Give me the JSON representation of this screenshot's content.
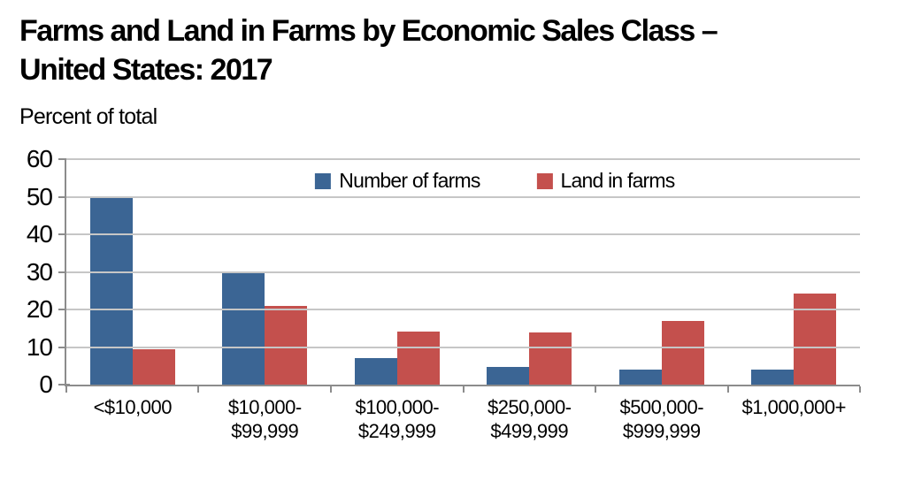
{
  "page": {
    "title_lines": [
      "Farms and Land in Farms by Economic Sales Class –",
      "United States: 2017"
    ],
    "y_unit_label": "Percent of total"
  },
  "chart_data": {
    "type": "bar",
    "title": "Farms and Land in Farms by Economic Sales Class – United States: 2017",
    "xlabel": "",
    "ylabel": "Percent of total",
    "ylim": [
      0,
      60
    ],
    "yticks": [
      0,
      10,
      20,
      30,
      40,
      50,
      60
    ],
    "grid": true,
    "legend_position": "top-center-inside",
    "categories": [
      "<$10,000",
      "$10,000-\n$99,999",
      "$100,000-\n$249,999",
      "$250,000-\n$499,999",
      "$500,000-\n$999,999",
      "$1,000,000+"
    ],
    "series": [
      {
        "name": "Number of farms",
        "color": "#3B6594",
        "values": [
          50,
          30,
          7,
          4.6,
          4,
          4
        ]
      },
      {
        "name": "Land in farms",
        "color": "#C4504D",
        "values": [
          9.5,
          21,
          14.2,
          14,
          17,
          24.3
        ]
      }
    ],
    "colors": {
      "gridline": "#C6C6C6",
      "axis": "#8C8C8C",
      "text": "#000000"
    }
  }
}
